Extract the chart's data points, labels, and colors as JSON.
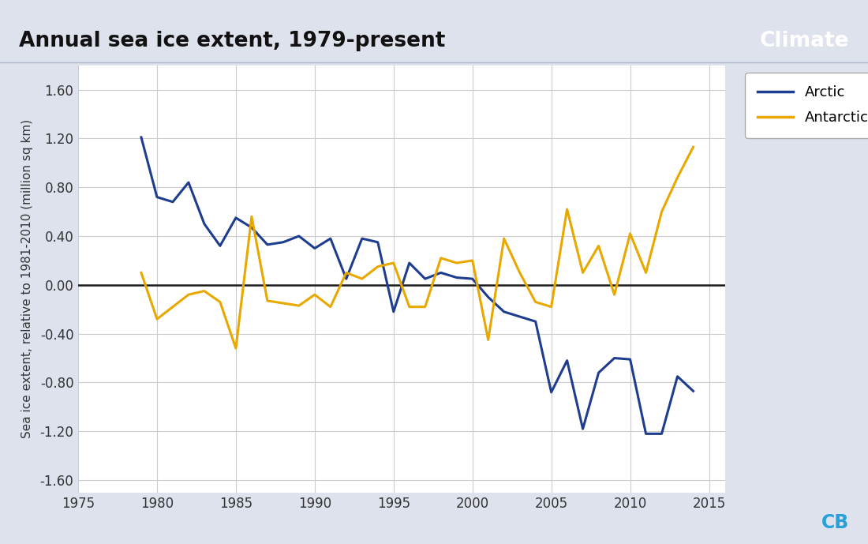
{
  "title": "Annual sea ice extent, 1979-present",
  "title_right": "Climate",
  "ylabel": "Sea ice extent, relative to 1981-2010 (million sq km)",
  "background_color": "#dde2ed",
  "plot_bg_color": "#ffffff",
  "arctic_color": "#1e3d8f",
  "antarctic_color": "#e8a800",
  "years": [
    1979,
    1980,
    1981,
    1982,
    1983,
    1984,
    1985,
    1986,
    1987,
    1988,
    1989,
    1990,
    1991,
    1992,
    1993,
    1994,
    1995,
    1996,
    1997,
    1998,
    1999,
    2000,
    2001,
    2002,
    2003,
    2004,
    2005,
    2006,
    2007,
    2008,
    2009,
    2010,
    2011,
    2012,
    2013,
    2014
  ],
  "arctic_values": [
    1.21,
    0.72,
    0.68,
    0.84,
    0.5,
    0.32,
    0.55,
    0.47,
    0.33,
    0.35,
    0.4,
    0.3,
    0.38,
    0.05,
    0.38,
    0.35,
    -0.22,
    0.18,
    0.05,
    0.1,
    0.06,
    0.05,
    -0.1,
    -0.22,
    -0.26,
    -0.3,
    -0.88,
    -0.62,
    -1.18,
    -0.72,
    -0.6,
    -0.61,
    -1.22,
    -1.22,
    -0.75,
    -0.87
  ],
  "antarctic_values": [
    0.1,
    -0.28,
    -0.18,
    -0.08,
    -0.05,
    -0.14,
    -0.52,
    0.56,
    -0.13,
    -0.15,
    -0.17,
    -0.08,
    -0.18,
    0.1,
    0.05,
    0.15,
    0.18,
    -0.18,
    -0.18,
    0.22,
    0.18,
    0.2,
    -0.45,
    0.38,
    0.1,
    -0.14,
    -0.18,
    0.62,
    0.1,
    0.32,
    -0.08,
    0.42,
    0.1,
    0.6,
    0.88,
    1.13
  ],
  "xlim": [
    1975,
    2016
  ],
  "ylim": [
    -1.7,
    1.8
  ],
  "yticks": [
    -1.6,
    -1.2,
    -0.8,
    -0.4,
    0.0,
    0.4,
    0.8,
    1.2,
    1.6
  ],
  "xticks": [
    1975,
    1980,
    1985,
    1990,
    1995,
    2000,
    2005,
    2010,
    2015
  ],
  "cb_color": "#2a9fd8",
  "line_width": 2.2,
  "title_fontsize": 19,
  "climate_fontsize": 19,
  "tick_fontsize": 12,
  "ylabel_fontsize": 11,
  "legend_fontsize": 13
}
